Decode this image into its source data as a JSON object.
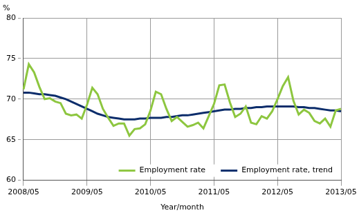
{
  "chart_data": {
    "type": "line",
    "x_label": "Year/month",
    "y_label": "%",
    "categories": [
      "2008/05",
      null,
      null,
      null,
      null,
      null,
      null,
      null,
      null,
      null,
      null,
      null,
      "2009/05",
      null,
      null,
      null,
      null,
      null,
      null,
      null,
      null,
      null,
      null,
      null,
      "2010/05",
      null,
      null,
      null,
      null,
      null,
      null,
      null,
      null,
      null,
      null,
      null,
      "2011/05",
      null,
      null,
      null,
      null,
      null,
      null,
      null,
      null,
      null,
      null,
      null,
      "2012/05",
      null,
      null,
      null,
      null,
      null,
      null,
      null,
      null,
      null,
      null,
      null,
      "2013/05"
    ],
    "series": [
      {
        "name": "Employment rate",
        "color": "#8dc63f",
        "line_style": "solid",
        "values": [
          71.2,
          74.3,
          73.3,
          71.5,
          70.0,
          70.1,
          69.7,
          69.5,
          68.2,
          68.0,
          68.1,
          67.6,
          69.3,
          71.4,
          70.6,
          68.8,
          67.7,
          66.7,
          67.0,
          67.0,
          65.5,
          66.3,
          66.4,
          66.9,
          68.6,
          70.9,
          70.6,
          68.8,
          67.3,
          67.8,
          67.2,
          66.6,
          66.8,
          67.1,
          66.4,
          67.9,
          69.4,
          71.7,
          71.8,
          69.6,
          67.8,
          68.2,
          69.1,
          67.1,
          66.9,
          67.9,
          67.6,
          68.5,
          70.0,
          71.6,
          72.7,
          69.8,
          68.1,
          68.7,
          68.3,
          67.3,
          67.0,
          67.6,
          66.6,
          68.6,
          68.8
        ]
      },
      {
        "name": "Employment rate, trend",
        "color": "#0c2d6b",
        "line_style": "solid",
        "values": [
          70.8,
          70.8,
          70.7,
          70.6,
          70.6,
          70.5,
          70.4,
          70.2,
          70.0,
          69.7,
          69.4,
          69.1,
          68.8,
          68.5,
          68.2,
          68.0,
          67.8,
          67.7,
          67.6,
          67.5,
          67.5,
          67.5,
          67.6,
          67.6,
          67.7,
          67.7,
          67.7,
          67.8,
          67.8,
          67.9,
          68.0,
          68.0,
          68.1,
          68.2,
          68.3,
          68.4,
          68.5,
          68.6,
          68.7,
          68.7,
          68.8,
          68.8,
          68.9,
          68.9,
          69.0,
          69.0,
          69.1,
          69.1,
          69.1,
          69.1,
          69.1,
          69.1,
          69.0,
          69.0,
          68.9,
          68.9,
          68.8,
          68.7,
          68.6,
          68.6,
          68.5
        ]
      }
    ],
    "ylim": [
      60,
      80
    ],
    "yticks": [
      60,
      65,
      70,
      75,
      80
    ],
    "grid": true,
    "legend": "lower right"
  }
}
